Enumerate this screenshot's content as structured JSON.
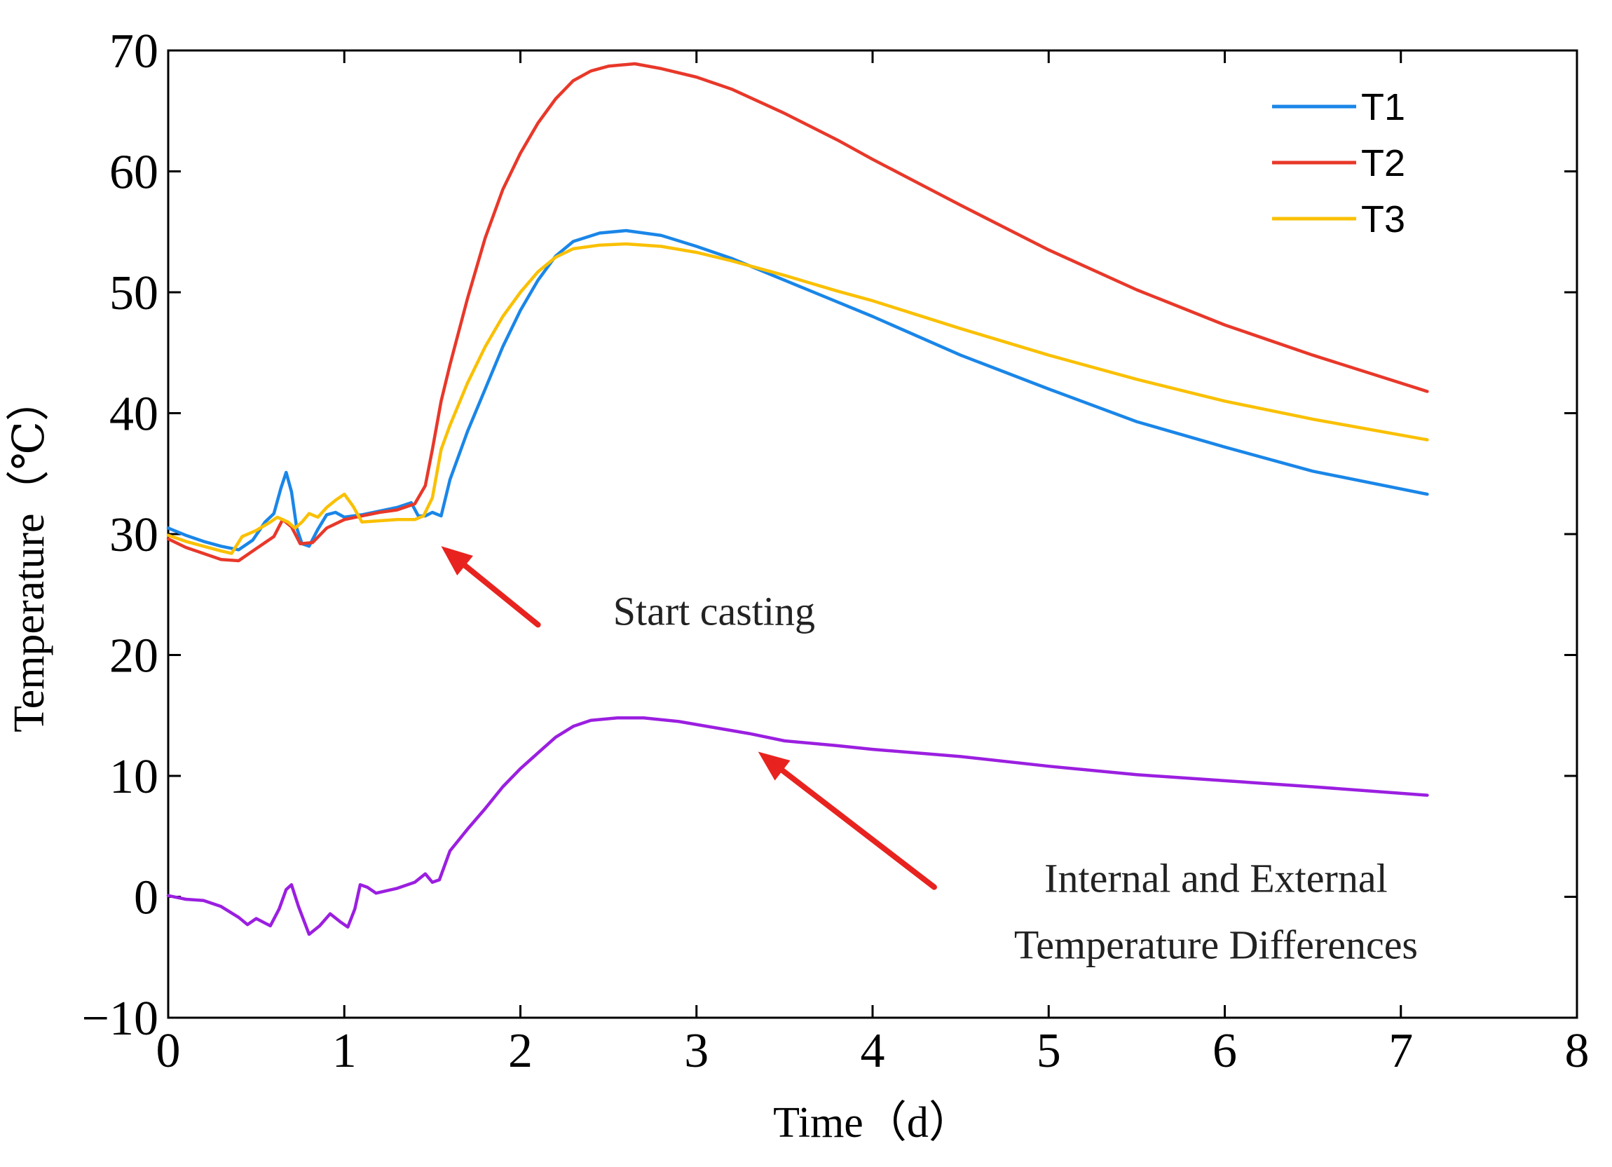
{
  "chart_data": {
    "type": "line",
    "xlabel": "Time（d）",
    "ylabel": "Temperature（℃）",
    "xlim": [
      0,
      8
    ],
    "ylim": [
      -10,
      70
    ],
    "xticks": [
      "0",
      "1",
      "2",
      "3",
      "4",
      "5",
      "6",
      "7",
      "8"
    ],
    "yticks": [
      "−10",
      "0",
      "10",
      "20",
      "30",
      "40",
      "50",
      "60",
      "70"
    ],
    "grid": false,
    "legend_position": "top-right",
    "series": [
      {
        "name": "T1",
        "color": "#1a86e8",
        "in_legend": true,
        "points": [
          [
            0,
            30.5
          ],
          [
            0.1,
            29.9
          ],
          [
            0.2,
            29.4
          ],
          [
            0.3,
            29.0
          ],
          [
            0.4,
            28.7
          ],
          [
            0.48,
            29.5
          ],
          [
            0.55,
            31.0
          ],
          [
            0.6,
            31.7
          ],
          [
            0.64,
            33.8
          ],
          [
            0.67,
            35.1
          ],
          [
            0.7,
            33.5
          ],
          [
            0.73,
            30.5
          ],
          [
            0.76,
            29.2
          ],
          [
            0.8,
            29.0
          ],
          [
            0.85,
            30.4
          ],
          [
            0.9,
            31.6
          ],
          [
            0.95,
            31.8
          ],
          [
            1.0,
            31.4
          ],
          [
            1.05,
            31.5
          ],
          [
            1.1,
            31.6
          ],
          [
            1.2,
            31.9
          ],
          [
            1.3,
            32.2
          ],
          [
            1.38,
            32.6
          ],
          [
            1.42,
            31.5
          ],
          [
            1.46,
            31.5
          ],
          [
            1.5,
            31.8
          ],
          [
            1.55,
            31.5
          ],
          [
            1.6,
            34.5
          ],
          [
            1.7,
            38.5
          ],
          [
            1.8,
            42.0
          ],
          [
            1.9,
            45.5
          ],
          [
            2.0,
            48.5
          ],
          [
            2.1,
            51.0
          ],
          [
            2.2,
            53.0
          ],
          [
            2.3,
            54.2
          ],
          [
            2.45,
            54.9
          ],
          [
            2.6,
            55.1
          ],
          [
            2.8,
            54.7
          ],
          [
            3.0,
            53.8
          ],
          [
            3.2,
            52.8
          ],
          [
            3.5,
            51.0
          ],
          [
            3.8,
            49.2
          ],
          [
            4.0,
            48.0
          ],
          [
            4.5,
            44.8
          ],
          [
            5.0,
            42.0
          ],
          [
            5.5,
            39.3
          ],
          [
            6.0,
            37.2
          ],
          [
            6.5,
            35.2
          ],
          [
            7.15,
            33.3
          ]
        ]
      },
      {
        "name": "T2",
        "color": "#e8382a",
        "in_legend": true,
        "points": [
          [
            0,
            29.6
          ],
          [
            0.1,
            28.9
          ],
          [
            0.2,
            28.4
          ],
          [
            0.3,
            27.9
          ],
          [
            0.4,
            27.8
          ],
          [
            0.5,
            28.8
          ],
          [
            0.6,
            29.8
          ],
          [
            0.65,
            31.2
          ],
          [
            0.7,
            30.6
          ],
          [
            0.75,
            29.2
          ],
          [
            0.82,
            29.3
          ],
          [
            0.9,
            30.5
          ],
          [
            1.0,
            31.2
          ],
          [
            1.1,
            31.5
          ],
          [
            1.2,
            31.8
          ],
          [
            1.3,
            32.0
          ],
          [
            1.4,
            32.5
          ],
          [
            1.46,
            34.0
          ],
          [
            1.5,
            37.0
          ],
          [
            1.55,
            41.0
          ],
          [
            1.6,
            44.0
          ],
          [
            1.7,
            49.5
          ],
          [
            1.8,
            54.5
          ],
          [
            1.9,
            58.5
          ],
          [
            2.0,
            61.5
          ],
          [
            2.1,
            64.0
          ],
          [
            2.2,
            66.0
          ],
          [
            2.3,
            67.5
          ],
          [
            2.4,
            68.3
          ],
          [
            2.5,
            68.7
          ],
          [
            2.65,
            68.9
          ],
          [
            2.8,
            68.5
          ],
          [
            3.0,
            67.8
          ],
          [
            3.2,
            66.8
          ],
          [
            3.5,
            64.8
          ],
          [
            3.8,
            62.6
          ],
          [
            4.0,
            61.0
          ],
          [
            4.5,
            57.2
          ],
          [
            5.0,
            53.5
          ],
          [
            5.5,
            50.2
          ],
          [
            6.0,
            47.3
          ],
          [
            6.5,
            44.8
          ],
          [
            7.15,
            41.8
          ]
        ]
      },
      {
        "name": "T3",
        "color": "#fac003",
        "in_legend": true,
        "points": [
          [
            0,
            29.9
          ],
          [
            0.1,
            29.4
          ],
          [
            0.2,
            29.0
          ],
          [
            0.3,
            28.6
          ],
          [
            0.36,
            28.4
          ],
          [
            0.42,
            29.8
          ],
          [
            0.5,
            30.3
          ],
          [
            0.58,
            31.0
          ],
          [
            0.62,
            31.4
          ],
          [
            0.68,
            31.0
          ],
          [
            0.72,
            30.5
          ],
          [
            0.76,
            31.0
          ],
          [
            0.8,
            31.7
          ],
          [
            0.85,
            31.4
          ],
          [
            0.9,
            32.2
          ],
          [
            0.95,
            32.8
          ],
          [
            1.0,
            33.3
          ],
          [
            1.05,
            32.3
          ],
          [
            1.1,
            31.0
          ],
          [
            1.2,
            31.1
          ],
          [
            1.3,
            31.2
          ],
          [
            1.4,
            31.2
          ],
          [
            1.45,
            31.5
          ],
          [
            1.5,
            33.0
          ],
          [
            1.55,
            37.0
          ],
          [
            1.6,
            39.0
          ],
          [
            1.7,
            42.5
          ],
          [
            1.8,
            45.5
          ],
          [
            1.9,
            48.0
          ],
          [
            2.0,
            50.0
          ],
          [
            2.1,
            51.7
          ],
          [
            2.2,
            52.9
          ],
          [
            2.3,
            53.6
          ],
          [
            2.45,
            53.9
          ],
          [
            2.6,
            54.0
          ],
          [
            2.8,
            53.8
          ],
          [
            3.0,
            53.3
          ],
          [
            3.2,
            52.6
          ],
          [
            3.5,
            51.4
          ],
          [
            3.8,
            50.1
          ],
          [
            4.0,
            49.3
          ],
          [
            4.5,
            47.0
          ],
          [
            5.0,
            44.8
          ],
          [
            5.5,
            42.8
          ],
          [
            6.0,
            41.0
          ],
          [
            6.5,
            39.5
          ],
          [
            7.15,
            37.8
          ]
        ]
      },
      {
        "name": "",
        "color": "#9b1fe0",
        "in_legend": false,
        "points": [
          [
            0,
            0.1
          ],
          [
            0.1,
            -0.2
          ],
          [
            0.2,
            -0.3
          ],
          [
            0.3,
            -0.8
          ],
          [
            0.4,
            -1.7
          ],
          [
            0.45,
            -2.3
          ],
          [
            0.5,
            -1.8
          ],
          [
            0.58,
            -2.4
          ],
          [
            0.63,
            -1.0
          ],
          [
            0.67,
            0.6
          ],
          [
            0.7,
            1.0
          ],
          [
            0.74,
            -0.8
          ],
          [
            0.8,
            -3.1
          ],
          [
            0.86,
            -2.4
          ],
          [
            0.92,
            -1.4
          ],
          [
            0.98,
            -2.1
          ],
          [
            1.02,
            -2.5
          ],
          [
            1.06,
            -1.0
          ],
          [
            1.09,
            1.0
          ],
          [
            1.13,
            0.8
          ],
          [
            1.18,
            0.3
          ],
          [
            1.3,
            0.7
          ],
          [
            1.4,
            1.2
          ],
          [
            1.46,
            1.9
          ],
          [
            1.5,
            1.2
          ],
          [
            1.54,
            1.4
          ],
          [
            1.6,
            3.8
          ],
          [
            1.7,
            5.6
          ],
          [
            1.8,
            7.3
          ],
          [
            1.9,
            9.1
          ],
          [
            2.0,
            10.6
          ],
          [
            2.1,
            11.9
          ],
          [
            2.2,
            13.2
          ],
          [
            2.3,
            14.1
          ],
          [
            2.4,
            14.6
          ],
          [
            2.55,
            14.8
          ],
          [
            2.7,
            14.8
          ],
          [
            2.9,
            14.5
          ],
          [
            3.1,
            14.0
          ],
          [
            3.3,
            13.5
          ],
          [
            3.5,
            12.9
          ],
          [
            3.8,
            12.5
          ],
          [
            4.0,
            12.2
          ],
          [
            4.5,
            11.6
          ],
          [
            5.0,
            10.8
          ],
          [
            5.5,
            10.1
          ],
          [
            6.0,
            9.6
          ],
          [
            6.5,
            9.1
          ],
          [
            7.15,
            8.4
          ]
        ]
      }
    ],
    "annotations": [
      {
        "id": "start-casting",
        "lines": [
          "Start casting"
        ],
        "arrow_color": "#e8231f",
        "arrow_from": [
          2.1,
          22.5
        ],
        "arrow_to": [
          1.55,
          29.0
        ],
        "text_at": [
          3.1,
          22.5
        ]
      },
      {
        "id": "temp-difference",
        "lines": [
          "Internal and External",
          "Temperature Differences"
        ],
        "arrow_color": "#e8231f",
        "arrow_from": [
          4.35,
          0.8
        ],
        "arrow_to": [
          3.35,
          12.0
        ],
        "text_at": [
          5.95,
          0.4
        ]
      }
    ]
  }
}
